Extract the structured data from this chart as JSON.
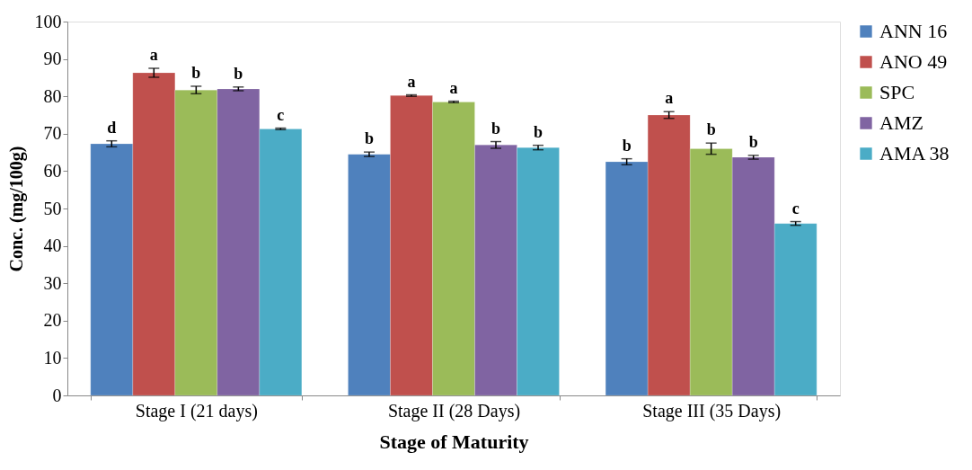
{
  "chart_data": {
    "type": "bar",
    "xlabel": "Stage of Maturity",
    "ylabel": "Conc. (mg/100g)",
    "categories": [
      "Stage I (21 days)",
      "Stage II (28 Days)",
      "Stage III (35 Days)"
    ],
    "series": [
      {
        "name": "ANN 16",
        "color": "#4f81bd",
        "values": [
          67.3,
          64.5,
          62.5
        ],
        "errors": [
          0.8,
          0.6,
          0.8
        ],
        "value_labels": [
          "d",
          "b",
          "b"
        ]
      },
      {
        "name": "ANO 49",
        "color": "#c0504d",
        "values": [
          86.3,
          80.2,
          75.0
        ],
        "errors": [
          1.2,
          0.2,
          0.9
        ],
        "value_labels": [
          "a",
          "a",
          "a"
        ]
      },
      {
        "name": "SPC",
        "color": "#9bbb59",
        "values": [
          81.7,
          78.5,
          66.0
        ],
        "errors": [
          1.0,
          0.2,
          1.5
        ],
        "value_labels": [
          "b",
          "a",
          "b"
        ]
      },
      {
        "name": "AMZ",
        "color": "#8064a2",
        "values": [
          82.0,
          67.0,
          63.7
        ],
        "errors": [
          0.5,
          0.9,
          0.5
        ],
        "value_labels": [
          "b",
          "b",
          "b"
        ]
      },
      {
        "name": "AMA 38",
        "color": "#4bacc6",
        "values": [
          71.3,
          66.3,
          46.0
        ],
        "errors": [
          0.2,
          0.6,
          0.5
        ],
        "value_labels": [
          "c",
          "b",
          "c"
        ]
      }
    ],
    "ylim": [
      0,
      100
    ],
    "yticks": [
      0,
      10,
      20,
      30,
      40,
      50,
      60,
      70,
      80,
      90,
      100
    ],
    "grid": false,
    "legend": "right"
  }
}
